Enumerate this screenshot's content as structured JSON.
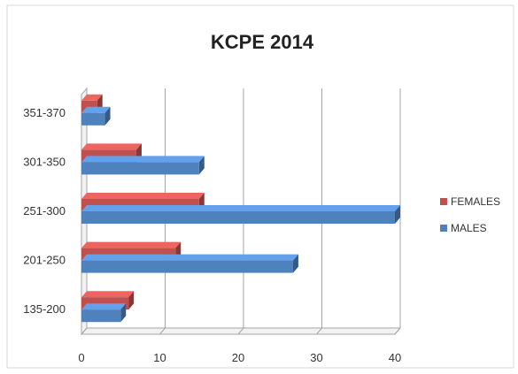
{
  "chart_data": {
    "type": "bar",
    "orientation": "horizontal",
    "style": "3d-clustered",
    "title": "KCPE 2014",
    "categories": [
      "135-200",
      "201-250",
      "251-300",
      "301-350",
      "351-370"
    ],
    "series": [
      {
        "name": "FEMALES",
        "values": [
          6,
          12,
          15,
          7,
          2
        ],
        "color": "#c0504d"
      },
      {
        "name": "MALES",
        "values": [
          5,
          27,
          40,
          15,
          3
        ],
        "color": "#4f81bd"
      }
    ],
    "xlim": [
      0,
      40
    ],
    "xticks": [
      "0",
      "10",
      "20",
      "30",
      "40"
    ],
    "grid": true,
    "legend_position": "right",
    "legend_order": [
      "FEMALES",
      "MALES"
    ]
  }
}
